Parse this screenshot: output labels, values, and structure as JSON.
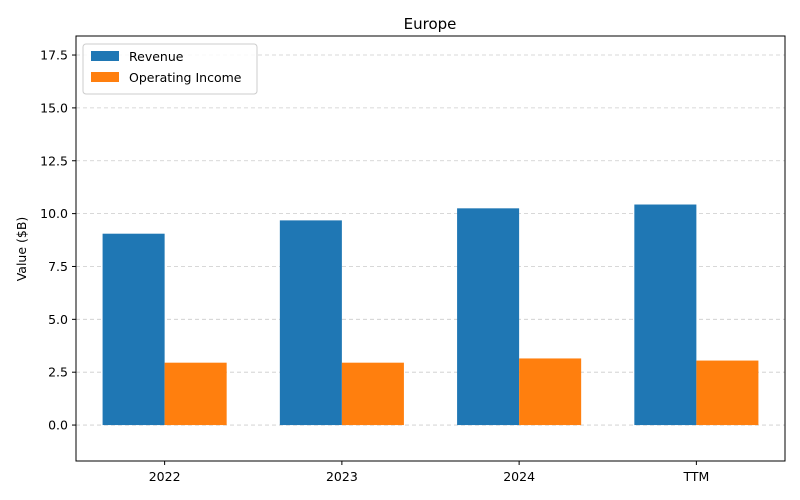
{
  "chart_data": {
    "type": "bar",
    "title": "Europe",
    "xlabel": "",
    "ylabel": "Value ($B)",
    "categories": [
      "2022",
      "2023",
      "2024",
      "TTM"
    ],
    "series": [
      {
        "name": "Revenue",
        "color": "#1f77b4",
        "values": [
          9.05,
          9.68,
          10.25,
          10.43
        ]
      },
      {
        "name": "Operating Income",
        "color": "#ff7f0e",
        "values": [
          2.95,
          2.95,
          3.15,
          3.05
        ]
      }
    ],
    "ylim": [
      -1.7,
      18.4
    ],
    "yticks": [
      0.0,
      2.5,
      5.0,
      7.5,
      10.0,
      12.5,
      15.0,
      17.5
    ],
    "ytick_labels": [
      "0.0",
      "2.5",
      "5.0",
      "7.5",
      "10.0",
      "12.5",
      "15.0",
      "17.5"
    ],
    "grid": "y-dashed",
    "legend_position": "top-left"
  }
}
